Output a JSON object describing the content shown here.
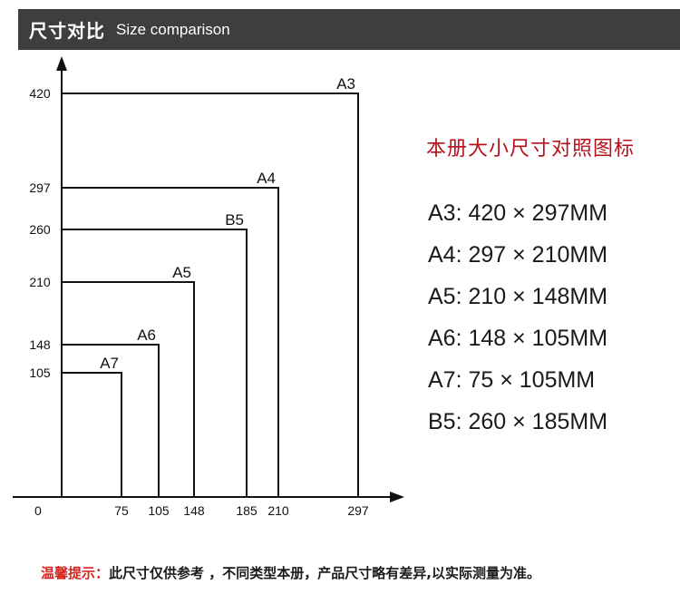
{
  "header": {
    "title_zh": "尺寸对比",
    "title_en": "Size comparison"
  },
  "diagram": {
    "origin_label": "0",
    "y_ticks": [
      "420",
      "297",
      "260",
      "210",
      "148",
      "105"
    ],
    "x_ticks": [
      "75",
      "105",
      "148",
      "185",
      "210",
      "297"
    ],
    "boxes": [
      {
        "name": "A3",
        "width": 297,
        "height": 420
      },
      {
        "name": "A4",
        "width": 210,
        "height": 297
      },
      {
        "name": "B5",
        "width": 185,
        "height": 260
      },
      {
        "name": "A5",
        "width": 148,
        "height": 210
      },
      {
        "name": "A6",
        "width": 105,
        "height": 148
      },
      {
        "name": "A7",
        "width": 75,
        "height": 105
      }
    ]
  },
  "legend": {
    "title": "本册大小尺寸对照图标",
    "items": [
      "A3: 420 × 297MM",
      "A4: 297 × 210MM",
      "A5: 210 × 148MM",
      "A6: 148 × 105MM",
      "A7: 75 × 105MM",
      "B5: 260 × 185MM"
    ]
  },
  "footer": {
    "warning_label": "温馨提示：",
    "note": "此尺寸仅供参考 ，不同类型本册，产品尺寸略有差异,以实际测量为准。"
  },
  "colors": {
    "header_bg": "#3e3e3e",
    "accent_red": "#b5121b",
    "warning_red": "#d6261f",
    "line": "#111111"
  }
}
